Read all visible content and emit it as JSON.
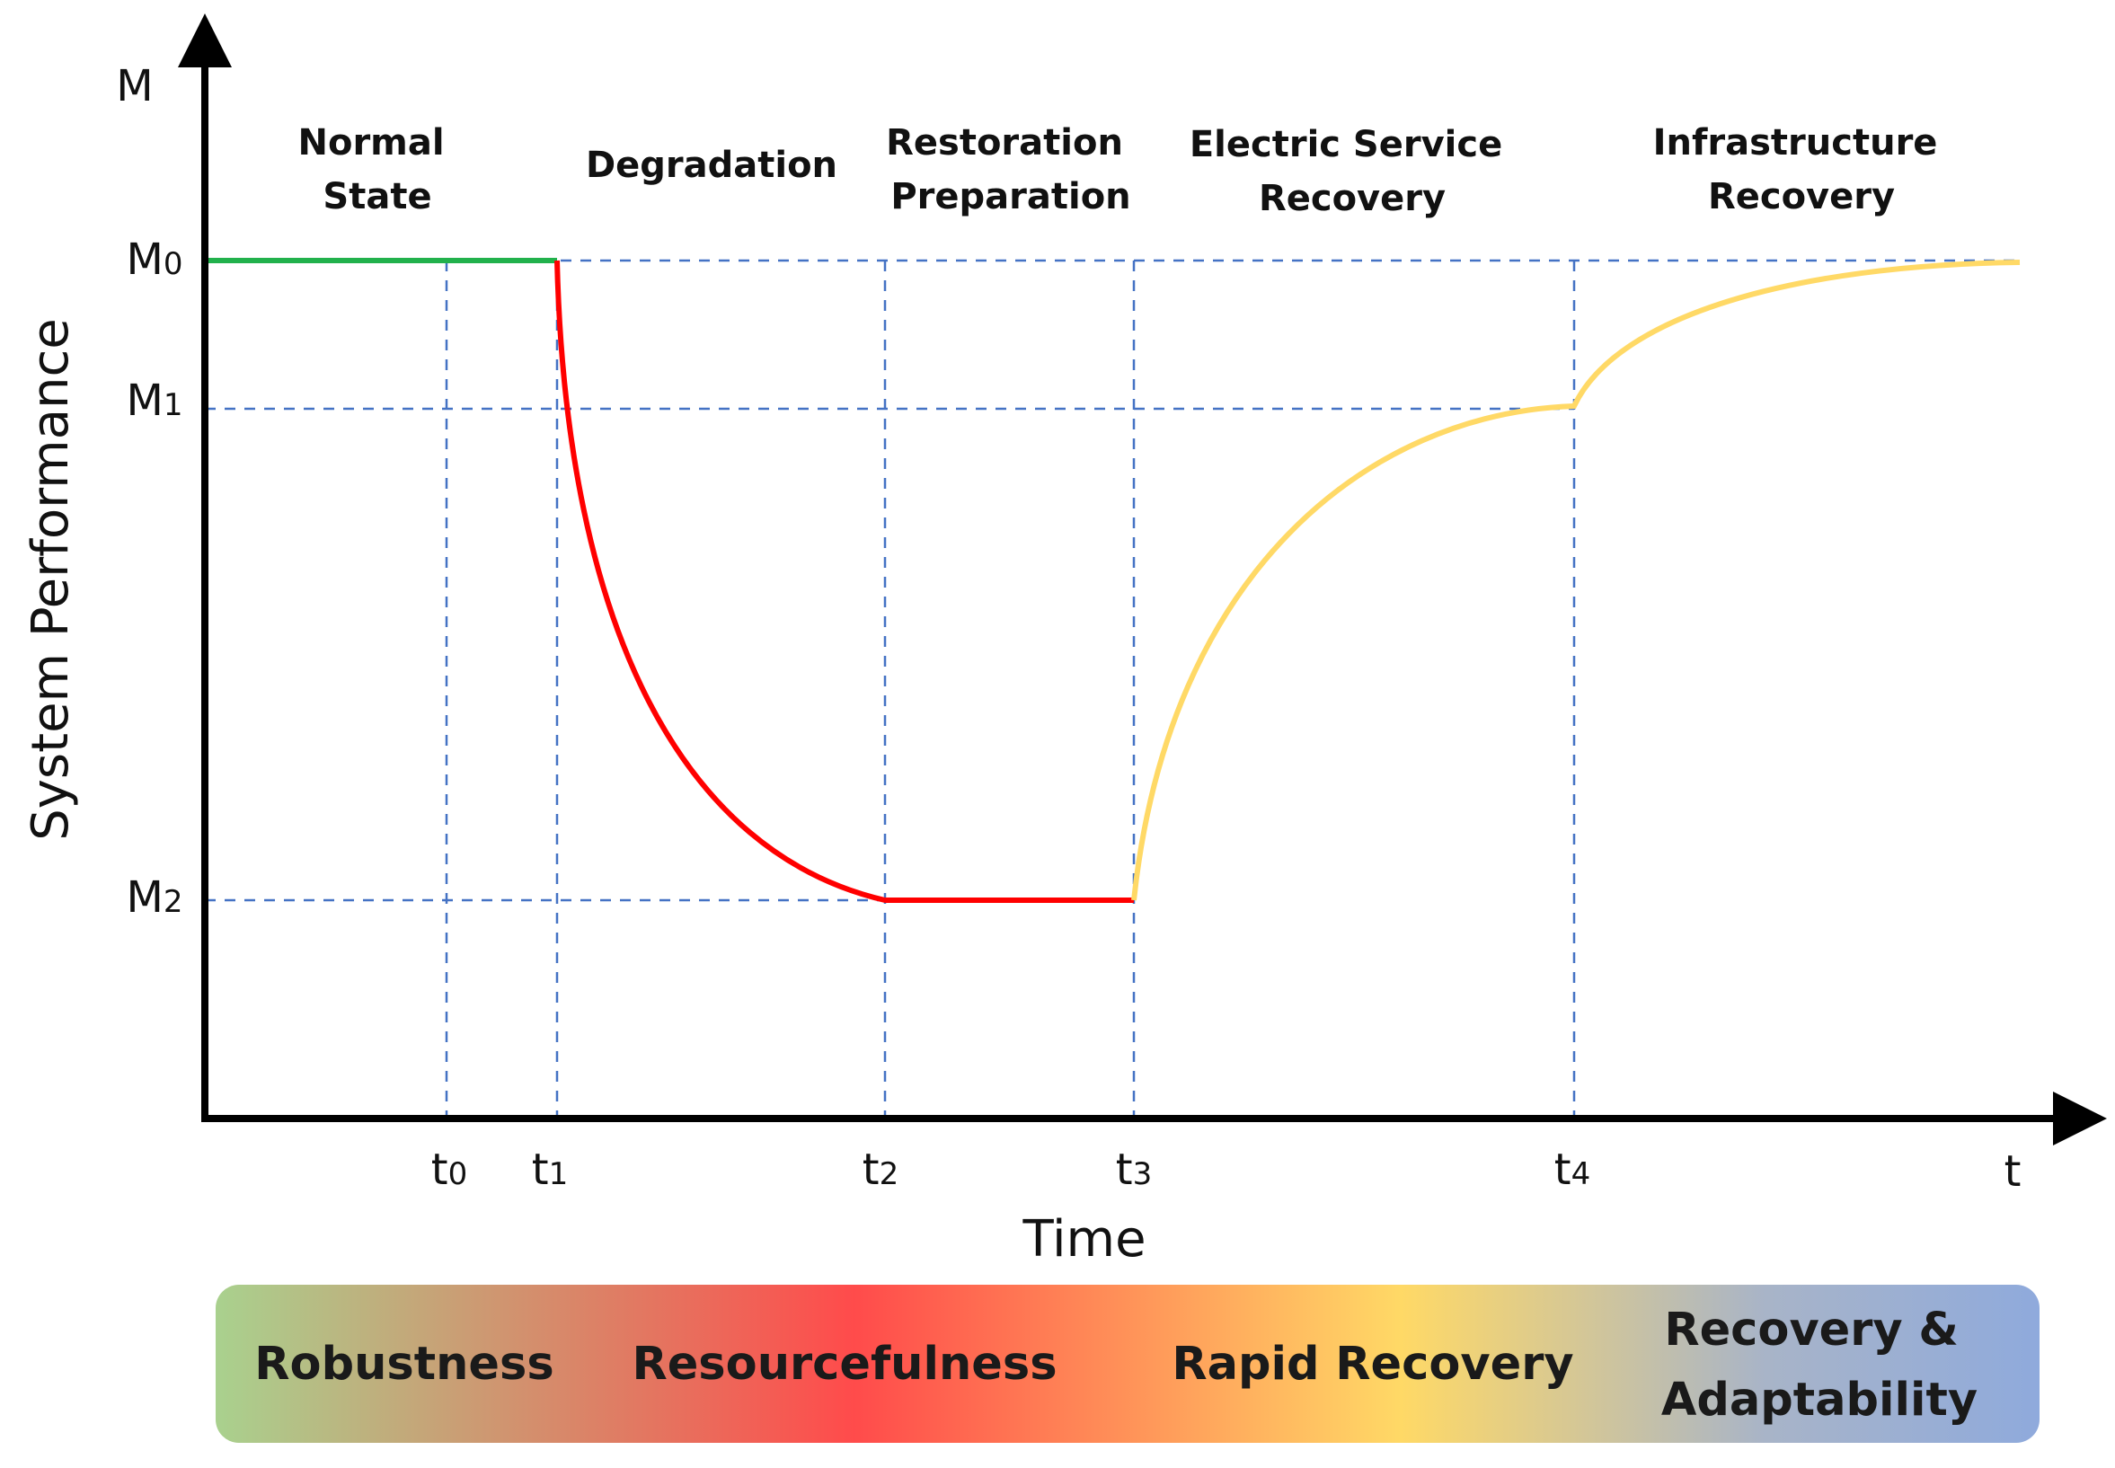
{
  "axes": {
    "y_symbol": "M",
    "x_symbol": "t",
    "y_title": "System Performance",
    "x_title": "Time"
  },
  "phases": [
    {
      "id": "normal",
      "lines": [
        "Normal",
        "State"
      ]
    },
    {
      "id": "degradation",
      "lines": [
        "Degradation"
      ]
    },
    {
      "id": "restoration",
      "lines": [
        "Restoration",
        "Preparation"
      ]
    },
    {
      "id": "electric",
      "lines": [
        "Electric Service",
        "Recovery"
      ]
    },
    {
      "id": "infrastructure",
      "lines": [
        "Infrastructure",
        "Recovery"
      ]
    }
  ],
  "time_marks": [
    {
      "base": "t",
      "sub": "0"
    },
    {
      "base": "t",
      "sub": "1"
    },
    {
      "base": "t",
      "sub": "2"
    },
    {
      "base": "t",
      "sub": "3"
    },
    {
      "base": "t",
      "sub": "4"
    }
  ],
  "performance_levels": [
    {
      "base": "M",
      "sub": "0"
    },
    {
      "base": "M",
      "sub": "1"
    },
    {
      "base": "M",
      "sub": "2"
    }
  ],
  "resilience_band": [
    {
      "id": "robustness",
      "lines": [
        "Robustness"
      ]
    },
    {
      "id": "resourcefulness",
      "lines": [
        "Resourcefulness"
      ]
    },
    {
      "id": "rapid-recovery",
      "lines": [
        "Rapid Recovery"
      ]
    },
    {
      "id": "recovery-adaptability",
      "lines": [
        "Recovery &",
        "Adaptability"
      ]
    }
  ],
  "colors": {
    "axis": "#000000",
    "guide": "#4472c4",
    "normal_curve": "#22b14c",
    "degradation_curve": "#ff0000",
    "recovery_curve": "#ffd966",
    "band_stops": [
      "#a9d18e",
      "#ff4b4b",
      "#ffd966",
      "#8faadc"
    ]
  }
}
